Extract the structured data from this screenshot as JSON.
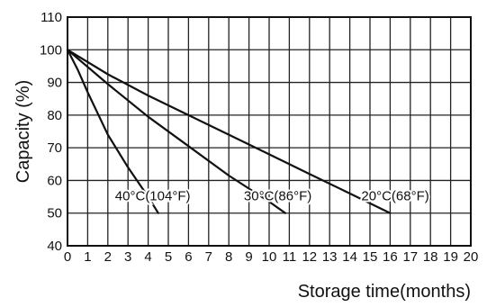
{
  "chart_data": {
    "type": "line",
    "title": "",
    "xlabel": "Storage time(months)",
    "ylabel": "Capacity (%)",
    "xlim": [
      0,
      20
    ],
    "ylim": [
      40,
      110
    ],
    "xticks": [
      0,
      1,
      2,
      3,
      4,
      5,
      6,
      7,
      8,
      9,
      10,
      11,
      12,
      13,
      14,
      15,
      16,
      17,
      18,
      19,
      20
    ],
    "yticks": [
      40,
      50,
      60,
      70,
      80,
      90,
      100,
      110
    ],
    "grid": true,
    "legend": "none",
    "series": [
      {
        "name": "40°C(104°F)",
        "x": [
          0,
          0.5,
          1,
          2,
          3,
          4,
          4.5
        ],
        "y": [
          100,
          94,
          87,
          74,
          64,
          55,
          50
        ]
      },
      {
        "name": "30°C(86°F)",
        "x": [
          0,
          2,
          4,
          6,
          8,
          10,
          10.8
        ],
        "y": [
          100,
          89.5,
          79.5,
          70.5,
          61.5,
          53.5,
          50
        ]
      },
      {
        "name": "20°C(68°F)",
        "x": [
          0,
          2,
          4,
          6,
          8,
          10,
          12,
          14,
          16
        ],
        "y": [
          100,
          92.5,
          86,
          80,
          74,
          68,
          62,
          56,
          50
        ]
      }
    ]
  }
}
